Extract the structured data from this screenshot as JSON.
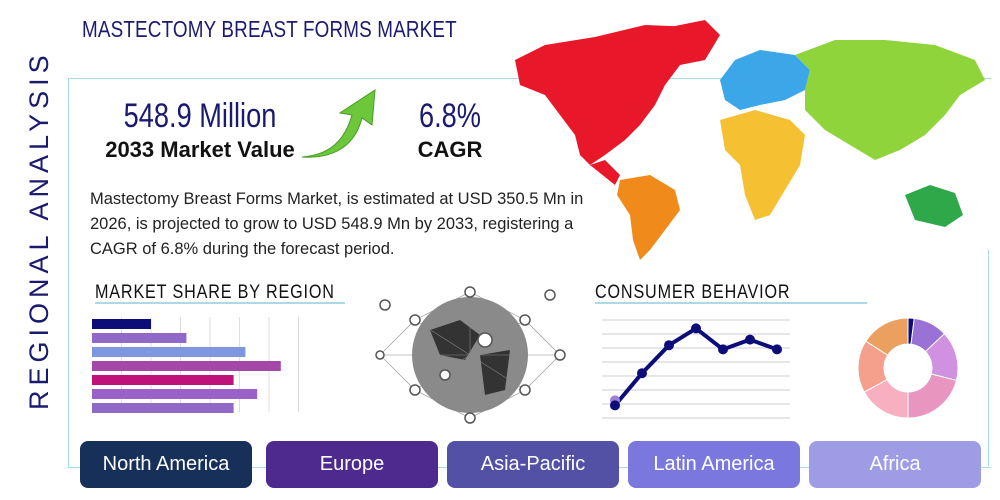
{
  "title": "MASTECTOMY BREAST FORMS MARKET",
  "side_label": "REGIONAL ANALYSIS",
  "market_value": {
    "value": "548.9 Million",
    "label": "2033 Market Value"
  },
  "cagr": {
    "value": "6.8%",
    "label": "CAGR"
  },
  "description": "Mastectomy Breast Forms Market, is estimated at USD 350.5 Mn in 2026, is projected to grow to USD 548.9 Mn by 2033, registering a CAGR of 6.8% during the forecast period.",
  "sections": {
    "market_share": "MARKET SHARE BY REGION",
    "consumer": "CONSUMER BEHAVIOR"
  },
  "tabs": [
    {
      "label": "North America",
      "color": "#17305a"
    },
    {
      "label": "Europe",
      "color": "#4e2a8e"
    },
    {
      "label": "Asia-Pacific",
      "color": "#5351a6"
    },
    {
      "label": "Latin America",
      "color": "#7a78de"
    },
    {
      "label": "Africa",
      "color": "#9f9ce6"
    }
  ],
  "colors": {
    "navy": "#1a1a6e",
    "accent_line": "#a9dbe6",
    "arrow": "#6cc83a"
  },
  "chart_data": [
    {
      "type": "bar",
      "orientation": "horizontal",
      "values": [
        2.0,
        3.2,
        5.2,
        6.4,
        4.8,
        5.6,
        4.8
      ],
      "xlim": [
        0,
        7
      ],
      "grid": true,
      "colors": [
        "#0d0d7a",
        "#9068c8",
        "#7f97e0",
        "#a448a8",
        "#c0107a",
        "#9a62c8",
        "#9068c8"
      ]
    },
    {
      "type": "line",
      "values": [
        0.9,
        3.2,
        5.2,
        6.4,
        4.9,
        5.6,
        4.9
      ],
      "ylim": [
        0,
        7
      ],
      "grid": true,
      "color": "#0d0d7a"
    },
    {
      "type": "pie",
      "donut": true,
      "values": [
        2,
        11,
        16,
        21,
        17,
        17,
        16
      ],
      "colors": [
        "#0d0d7a",
        "#9a72d6",
        "#d092e0",
        "#e896c0",
        "#f8b0c0",
        "#f4a08c",
        "#eca060"
      ]
    }
  ]
}
